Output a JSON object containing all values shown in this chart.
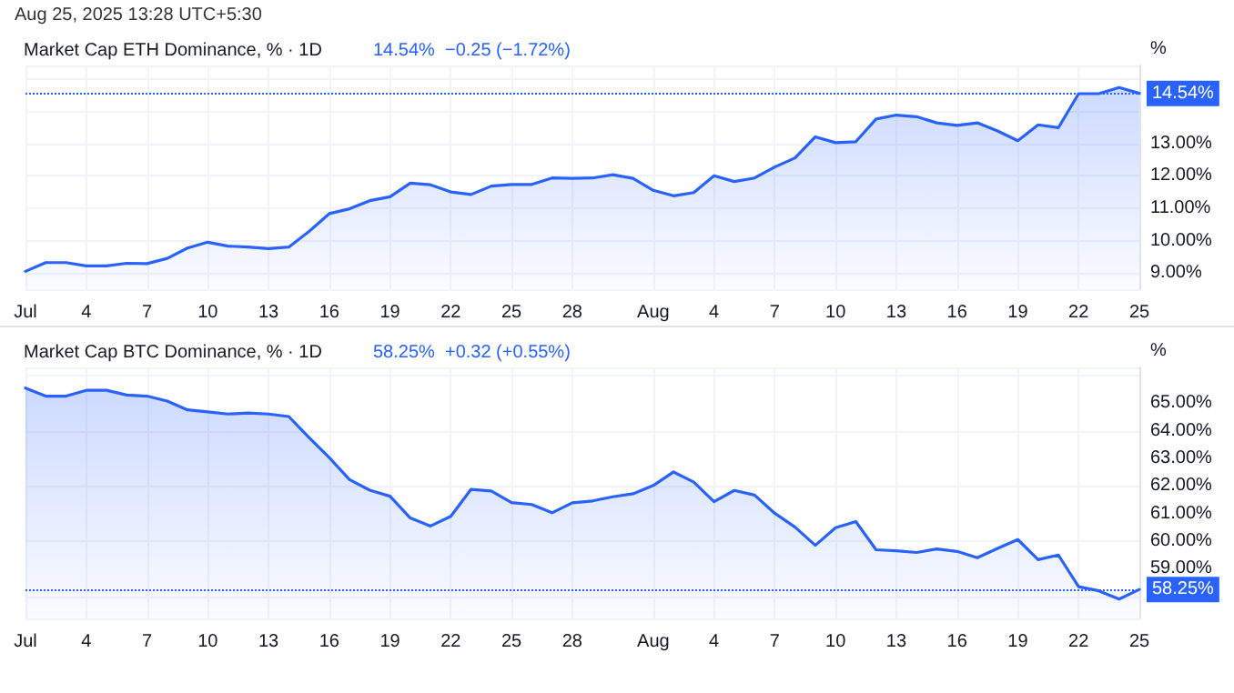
{
  "chart_data": [
    {
      "type": "area",
      "title": "Market Cap ETH Dominance, % · 1D",
      "subtitle": "14.54%  −0.25 (−1.72%)",
      "ylabel": "%",
      "annotations": [
        "Aug 25, 2025 13:28 UTC+5:30"
      ],
      "categories": [
        "Jul",
        null,
        null,
        "4",
        null,
        null,
        "7",
        null,
        null,
        "10",
        null,
        null,
        "13",
        null,
        null,
        "16",
        null,
        null,
        "19",
        null,
        null,
        "22",
        null,
        null,
        "25",
        null,
        null,
        "28",
        null,
        null,
        null,
        "Aug",
        null,
        null,
        "4",
        null,
        null,
        "7",
        null,
        null,
        "10",
        null,
        null,
        "13",
        null,
        null,
        "16",
        null,
        null,
        "19",
        null,
        null,
        "22",
        null,
        null,
        "25"
      ],
      "series": [
        {
          "color": "#2962ff",
          "values": [
            9.05,
            9.32,
            9.32,
            9.22,
            9.22,
            9.3,
            9.29,
            9.45,
            9.77,
            9.95,
            9.83,
            9.8,
            9.75,
            9.8,
            10.28,
            10.83,
            10.98,
            11.23,
            11.35,
            11.77,
            11.72,
            11.5,
            11.42,
            11.68,
            11.73,
            11.73,
            11.93,
            11.92,
            11.93,
            12.03,
            11.92,
            11.55,
            11.38,
            11.48,
            12.0,
            11.82,
            11.93,
            12.27,
            12.55,
            13.2,
            13.02,
            13.05,
            13.75,
            13.87,
            13.82,
            13.63,
            13.55,
            13.63,
            13.38,
            13.08,
            13.57,
            13.48,
            14.53,
            14.53,
            14.72,
            14.54
          ]
        }
      ],
      "ylim": [
        8.5,
        15.4
      ],
      "yticks": [
        {
          "value": 9,
          "label": "9.00%"
        },
        {
          "value": 10,
          "label": "10.00%"
        },
        {
          "value": 11,
          "label": "11.00%"
        },
        {
          "value": 12,
          "label": "12.00%"
        },
        {
          "value": 13,
          "label": "13.00%"
        }
      ],
      "ref_lines": [
        {
          "axis": "y",
          "value": 14.54,
          "label": "14.54%",
          "color": "#2962ff",
          "line_style": "dotted"
        }
      ],
      "grid": true,
      "marker": "none",
      "line_style": "solid"
    },
    {
      "type": "area",
      "title": "Market Cap BTC Dominance, % · 1D",
      "subtitle": "58.25%  +0.32 (+0.55%)",
      "ylabel": "%",
      "categories": [
        "Jul",
        null,
        null,
        "4",
        null,
        null,
        "7",
        null,
        null,
        "10",
        null,
        null,
        "13",
        null,
        null,
        "16",
        null,
        null,
        "19",
        null,
        null,
        "22",
        null,
        null,
        "25",
        null,
        null,
        "28",
        null,
        null,
        null,
        "Aug",
        null,
        null,
        "4",
        null,
        null,
        "7",
        null,
        null,
        "10",
        null,
        null,
        "13",
        null,
        null,
        "16",
        null,
        null,
        "19",
        null,
        null,
        "22",
        null,
        null,
        "25"
      ],
      "series": [
        {
          "color": "#2962ff",
          "values": [
            65.55,
            65.26,
            65.26,
            65.47,
            65.47,
            65.3,
            65.26,
            65.08,
            64.76,
            64.69,
            64.61,
            64.65,
            64.61,
            64.52,
            63.76,
            63.03,
            62.23,
            61.85,
            61.63,
            60.84,
            60.55,
            60.9,
            61.88,
            61.82,
            61.4,
            61.33,
            61.03,
            61.39,
            61.46,
            61.61,
            61.72,
            62.02,
            62.51,
            62.14,
            61.43,
            61.84,
            61.67,
            61.01,
            60.51,
            59.85,
            60.49,
            60.71,
            59.69,
            59.65,
            59.59,
            59.72,
            59.63,
            59.4,
            59.74,
            60.06,
            59.33,
            59.5,
            58.35,
            58.2,
            57.9,
            58.25
          ]
        }
      ],
      "ylim": [
        57.2,
        66.3
      ],
      "yticks": [
        {
          "value": 59,
          "label": "59.00%"
        },
        {
          "value": 60,
          "label": "60.00%"
        },
        {
          "value": 61,
          "label": "61.00%"
        },
        {
          "value": 62,
          "label": "62.00%"
        },
        {
          "value": 63,
          "label": "63.00%"
        },
        {
          "value": 64,
          "label": "64.00%"
        },
        {
          "value": 65,
          "label": "65.00%"
        }
      ],
      "ref_lines": [
        {
          "axis": "y",
          "value": 58.25,
          "label": "58.25%",
          "color": "#2962ff",
          "line_style": "dotted"
        }
      ],
      "grid": true,
      "marker": "none",
      "line_style": "solid"
    }
  ]
}
